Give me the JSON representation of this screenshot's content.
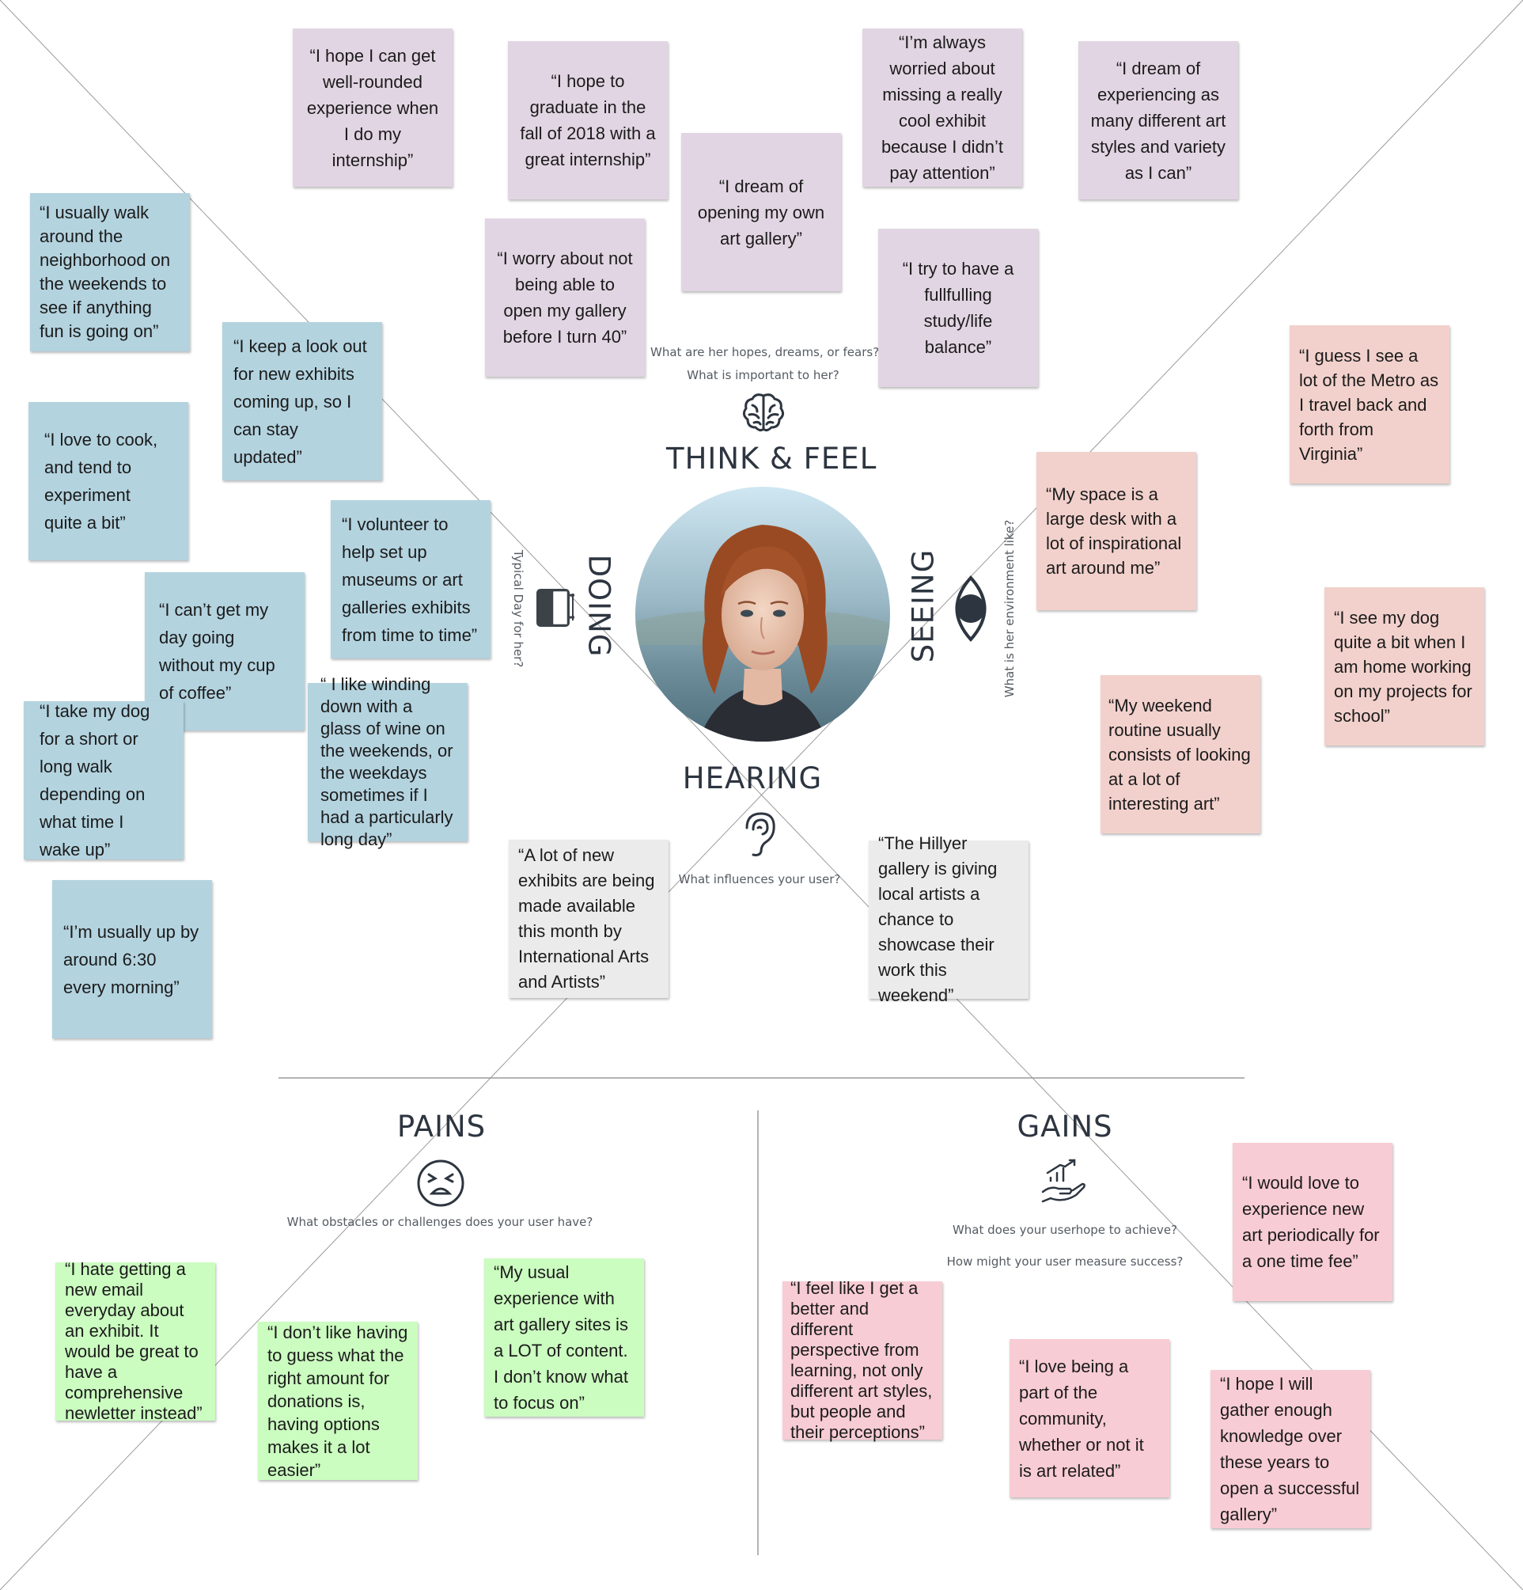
{
  "think_feel": {
    "title": "THINK & FEEL",
    "prompt_line1": "What are her hopes, dreams, or fears?",
    "prompt_line2": "What is important to her?",
    "icon": "brain-icon",
    "notes": [
      "“I hope I can get well-rounded experience when I do my internship”",
      "“I hope to graduate in the fall of 2018 with a great internship”",
      "“I’m always worried about missing a really cool exhibit because I didn’t pay attention”",
      "“I dream of experiencing as many different art styles and variety as I can”",
      "“I dream of opening my own art gallery”",
      "“I worry about not being able to open my gallery before I turn 40”",
      "“I try to have a fullfulling study/life balance”"
    ]
  },
  "doing": {
    "title": "DOING",
    "prompt": "Typical Day for her?",
    "icon": "notebook-icon",
    "notes": [
      "“I usually walk around the neighborhood on the weekends to see if anything fun is going on”",
      "“I keep a look out for new exhibits coming up, so I can stay updated”",
      "“I love to cook, and tend to experiment quite a bit”",
      "“I volunteer to help set up museums or art galleries exhibits from time to time”",
      "“I can’t get my day going without my cup of coffee”",
      "“ I like winding down with a glass of wine on the weekends, or the weekdays sometimes if I had a particularly long day”",
      "“I take my dog for a short or long walk depending on what time I wake up”",
      "“I’m usually up by around 6:30 every morning”"
    ]
  },
  "seeing": {
    "title": "SEEING",
    "prompt": "What is her environment like?",
    "icon": "eye-icon",
    "notes": [
      "“I guess I see a lot of the Metro as I travel back and forth from Virginia”",
      "“My space is a large desk with a lot of inspirational art around me”",
      "“I see my dog quite a bit when I am home working on my projects for school”",
      "“My weekend routine usually consists of looking at a lot of interesting art”"
    ]
  },
  "hearing": {
    "title": "HEARING",
    "prompt": "What influences your user?",
    "icon": "ear-icon",
    "notes": [
      "“A lot of new exhibits are being made available this month by International Arts and Artists”",
      "“The Hillyer gallery is giving local artists a chance to showcase their work this weekend”"
    ]
  },
  "pains": {
    "title": "PAINS",
    "prompt": "What obstacles or challenges does your user have?",
    "icon": "frustrated-face-icon",
    "notes": [
      "“I hate getting a new email everyday about an exhibit. It would be great to have a comprehensive newletter instead”",
      "“I don’t like having to guess what the right amount for donations is, having options makes it a lot easier”",
      "“My usual experience with art gallery sites is a LOT of content. I don’t know what to focus on”"
    ]
  },
  "gains": {
    "title": "GAINS",
    "prompt_line1": "What does your userhope to achieve?",
    "prompt_line2": "How might your user measure success?",
    "icon": "growth-hand-icon",
    "notes": [
      "“I would love to experience new art periodically for a one time fee”",
      "“I feel like I get a better and different perspective from learning, not only different art styles, but people and their perceptions”",
      "“I love being a part of the community, whether or not it is art related”",
      "“I hope I will gather enough knowledge over these years to open a successful gallery”"
    ]
  },
  "persona": {
    "icon": "persona-portrait"
  },
  "colors": {
    "think_feel": "#e2d5e3",
    "doing": "#b3d3df",
    "seeing": "#f2d1cc",
    "hearing": "#ebebeb",
    "pains": "#cbfcc0",
    "gains": "#f8ccd4"
  }
}
